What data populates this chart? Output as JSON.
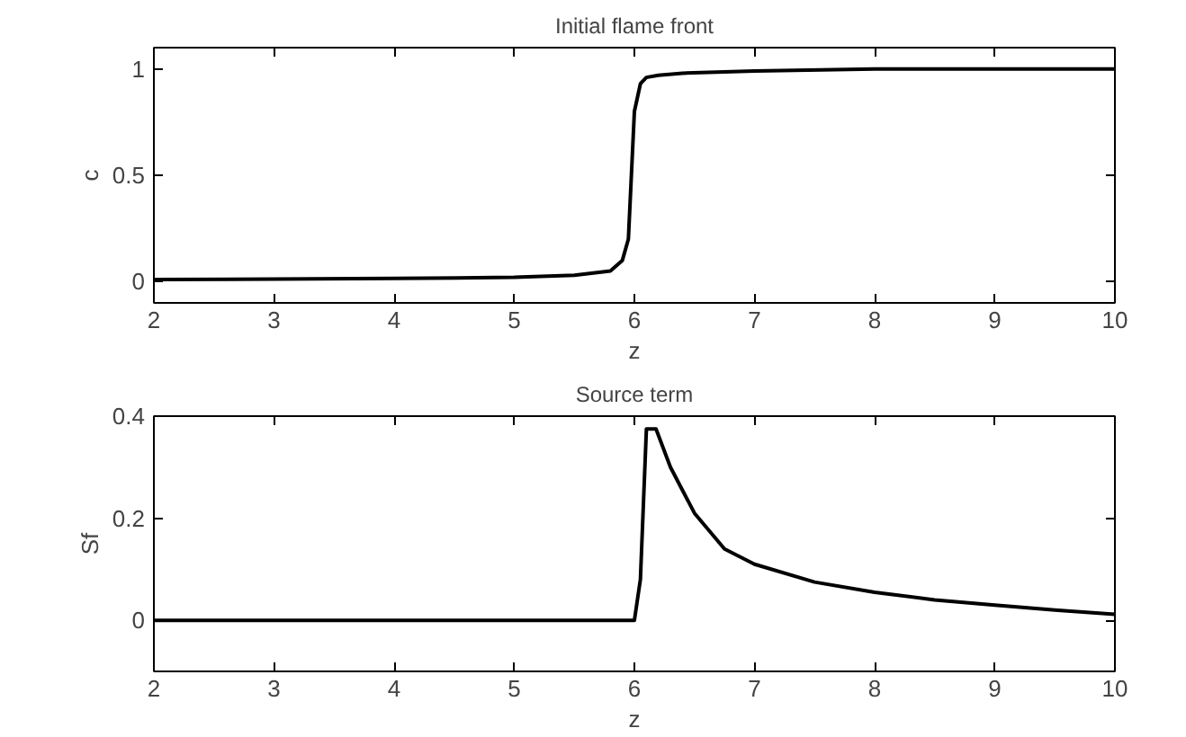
{
  "chart_data": [
    {
      "type": "line",
      "title": "Initial flame front",
      "xlabel": "z",
      "ylabel": "c",
      "xlim": [
        2,
        10
      ],
      "xticks": [
        2,
        3,
        4,
        5,
        6,
        7,
        8,
        9,
        10
      ],
      "ylim": [
        -0.1,
        1.1
      ],
      "yticks": [
        0,
        0.5,
        1
      ],
      "grid": false,
      "series": [
        {
          "color": "#000000",
          "x": [
            2,
            3,
            4,
            5,
            5.5,
            5.8,
            5.9,
            5.95,
            6.0,
            6.05,
            6.1,
            6.2,
            6.4,
            7,
            8,
            10
          ],
          "values": [
            0.01,
            0.012,
            0.015,
            0.02,
            0.03,
            0.05,
            0.1,
            0.2,
            0.8,
            0.93,
            0.96,
            0.97,
            0.98,
            0.99,
            1,
            1
          ]
        }
      ]
    },
    {
      "type": "line",
      "title": "Source term",
      "xlabel": "z",
      "ylabel": "Sf",
      "xlim": [
        2,
        10
      ],
      "xticks": [
        2,
        3,
        4,
        5,
        6,
        7,
        8,
        9,
        10
      ],
      "ylim": [
        -0.1,
        0.4
      ],
      "yticks": [
        0,
        0.2,
        0.4
      ],
      "grid": false,
      "series": [
        {
          "color": "#000000",
          "x": [
            2,
            6.0,
            6.05,
            6.1,
            6.18,
            6.3,
            6.5,
            6.75,
            7,
            7.5,
            8,
            8.5,
            9,
            9.5,
            10
          ],
          "values": [
            0,
            0,
            0.08,
            0.375,
            0.375,
            0.3,
            0.21,
            0.14,
            0.11,
            0.075,
            0.055,
            0.04,
            0.03,
            0.02,
            0.012
          ]
        }
      ]
    }
  ]
}
